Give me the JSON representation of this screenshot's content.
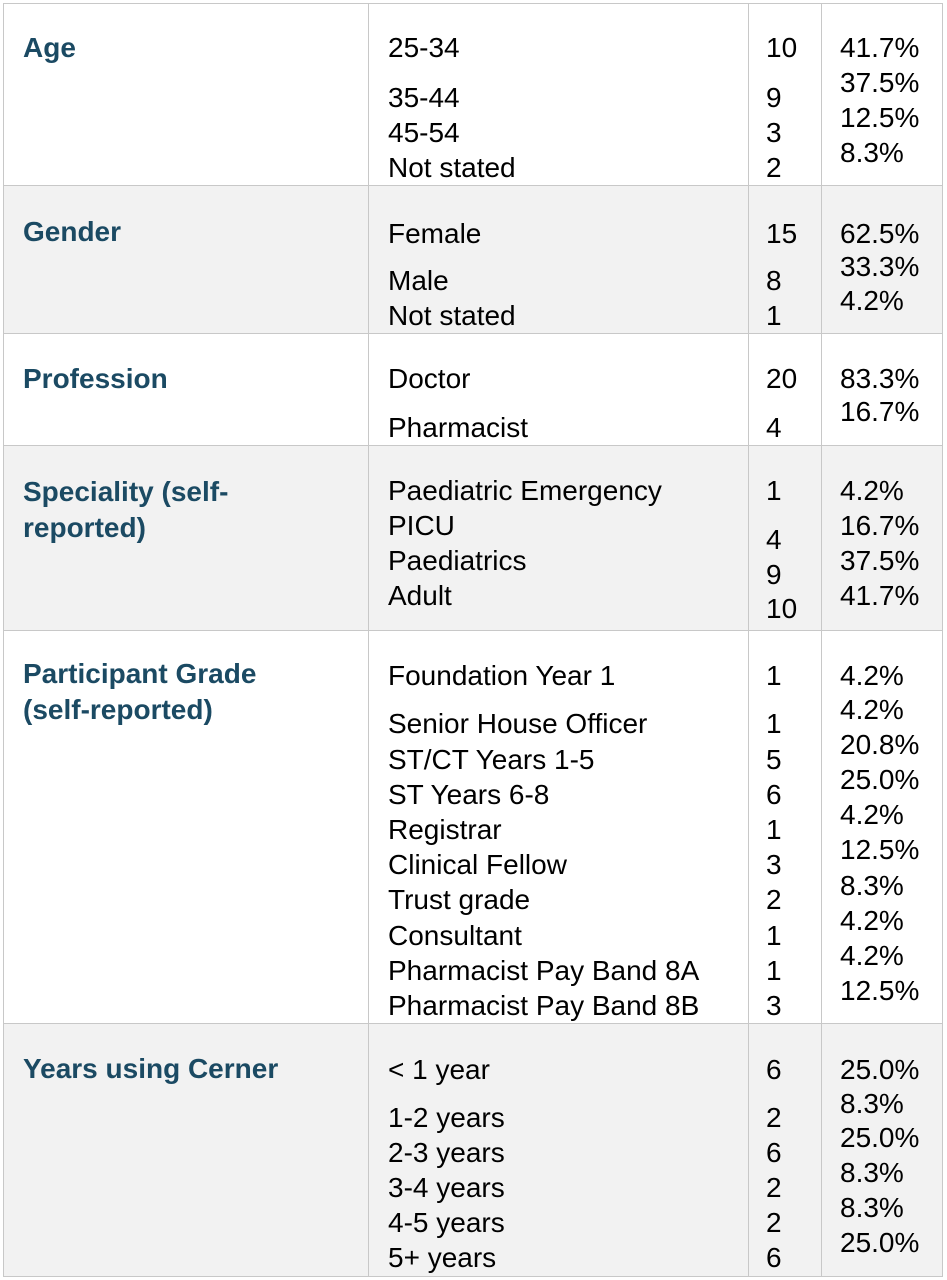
{
  "table": {
    "sections": [
      {
        "heading": "Age",
        "rows": [
          {
            "label": "25-34",
            "n": "10",
            "pct": "41.7%"
          },
          {
            "label": "35-44",
            "n": "9",
            "pct": "37.5%"
          },
          {
            "label": "45-54",
            "n": "3",
            "pct": "12.5%"
          },
          {
            "label": "Not stated",
            "n": "2",
            "pct": "8.3%"
          }
        ]
      },
      {
        "heading": "Gender",
        "rows": [
          {
            "label": "Female",
            "n": "15",
            "pct": "62.5%"
          },
          {
            "label": "Male",
            "n": "8",
            "pct": "33.3%"
          },
          {
            "label": "Not stated",
            "n": "1",
            "pct": "4.2%"
          }
        ]
      },
      {
        "heading": "Profession",
        "rows": [
          {
            "label": "Doctor",
            "n": "20",
            "pct": "83.3%"
          },
          {
            "label": "Pharmacist",
            "n": "4",
            "pct": "16.7%"
          }
        ]
      },
      {
        "heading": "Speciality (self-reported)",
        "rows": [
          {
            "label": "Paediatric Emergency",
            "n": "1",
            "pct": "4.2%"
          },
          {
            "label": "PICU",
            "n": "4",
            "pct": "16.7%"
          },
          {
            "label": "Paediatrics",
            "n": "9",
            "pct": "37.5%"
          },
          {
            "label": "Adult",
            "n": "10",
            "pct": "41.7%"
          }
        ]
      },
      {
        "heading": "Participant Grade (self-reported)",
        "rows": [
          {
            "label": "Foundation Year 1",
            "n": "1",
            "pct": "4.2%"
          },
          {
            "label": "Senior House Officer",
            "n": "1",
            "pct": "4.2%"
          },
          {
            "label": "ST/CT Years 1-5",
            "n": "5",
            "pct": "20.8%"
          },
          {
            "label": "ST Years 6-8",
            "n": "6",
            "pct": "25.0%"
          },
          {
            "label": "Registrar",
            "n": "1",
            "pct": "4.2%"
          },
          {
            "label": "Clinical Fellow",
            "n": "3",
            "pct": "12.5%"
          },
          {
            "label": "Trust grade",
            "n": "2",
            "pct": "8.3%"
          },
          {
            "label": "Consultant",
            "n": "1",
            "pct": "4.2%"
          },
          {
            "label": "Pharmacist Pay Band 8A",
            "n": "1",
            "pct": "4.2%"
          },
          {
            "label": "Pharmacist Pay Band 8B",
            "n": "3",
            "pct": "12.5%"
          }
        ]
      },
      {
        "heading": "Years using Cerner",
        "rows": [
          {
            "label": "< 1 year",
            "n": "6",
            "pct": "25.0%"
          },
          {
            "label": "1-2 years",
            "n": "2",
            "pct": "8.3%"
          },
          {
            "label": "2-3 years",
            "n": "6",
            "pct": "25.0%"
          },
          {
            "label": "3-4 years",
            "n": "2",
            "pct": "8.3%"
          },
          {
            "label": "4-5 years",
            "n": "2",
            "pct": "8.3%"
          },
          {
            "label": "5+ years",
            "n": "6",
            "pct": "25.0%"
          }
        ]
      }
    ]
  }
}
